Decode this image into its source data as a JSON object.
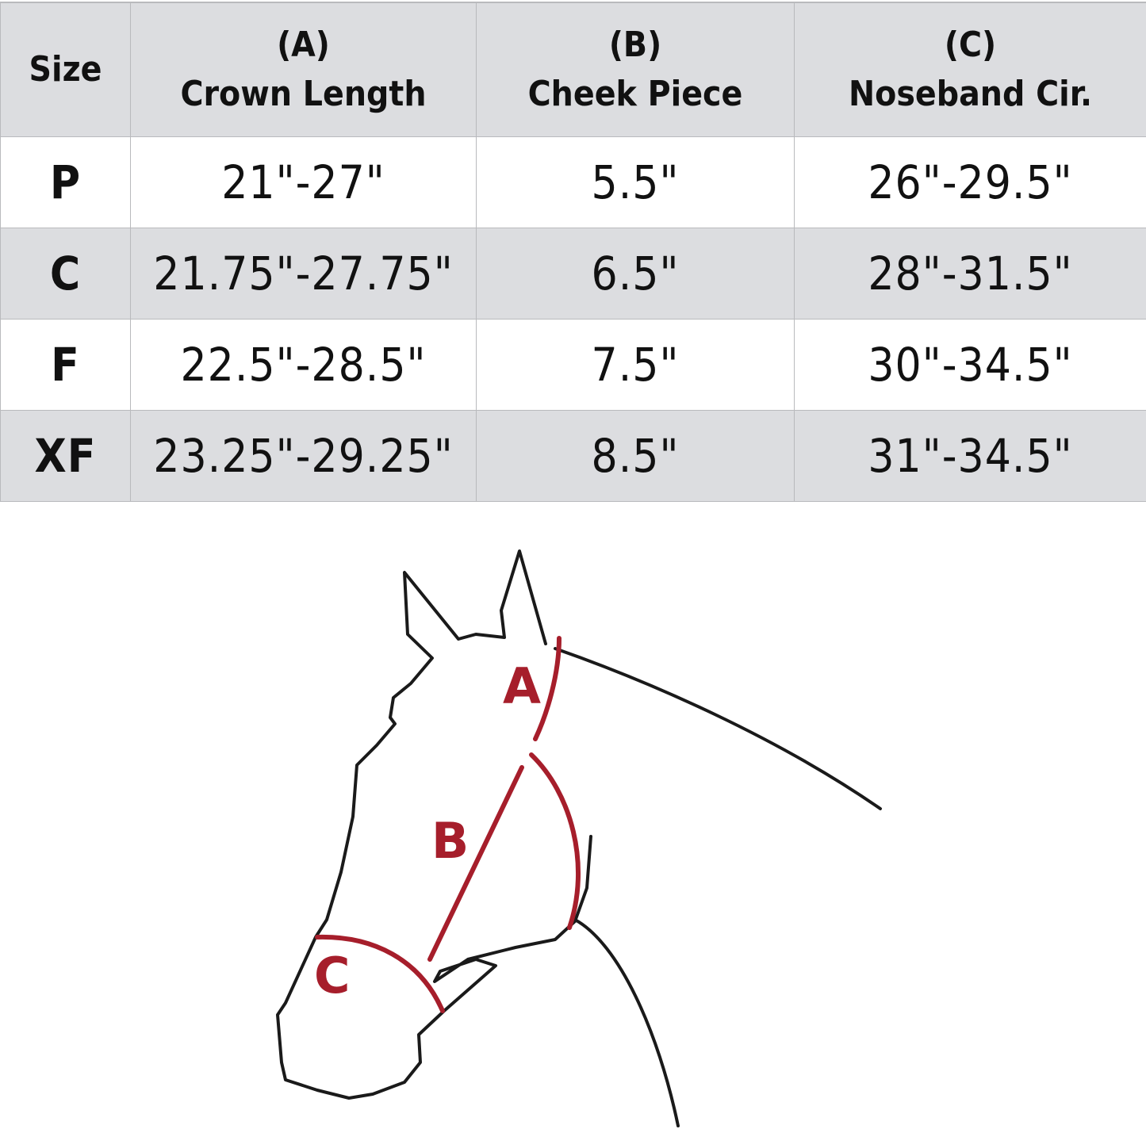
{
  "table": {
    "headers": [
      {
        "letter": "",
        "label": "Size"
      },
      {
        "letter": "(A)",
        "label": "Crown Length"
      },
      {
        "letter": "(B)",
        "label": "Cheek Piece"
      },
      {
        "letter": "(C)",
        "label": "Noseband Cir."
      }
    ],
    "rows": [
      {
        "size": "P",
        "crown": "21\"-27\"",
        "cheek": "5.5\"",
        "noseband": "26\"-29.5\""
      },
      {
        "size": "C",
        "crown": "21.75\"-27.75\"",
        "cheek": "6.5\"",
        "noseband": "28\"-31.5\""
      },
      {
        "size": "F",
        "crown": "22.5\"-28.5\"",
        "cheek": "7.5\"",
        "noseband": "30\"-34.5\""
      },
      {
        "size": "XF",
        "crown": "23.25\"-29.25\"",
        "cheek": "8.5\"",
        "noseband": "31\"-34.5\""
      }
    ]
  },
  "diagram": {
    "labels": {
      "a": "A",
      "b": "B",
      "c": "C"
    },
    "accent_color": "#a61e2b",
    "outline_color": "#1a1a1a"
  }
}
